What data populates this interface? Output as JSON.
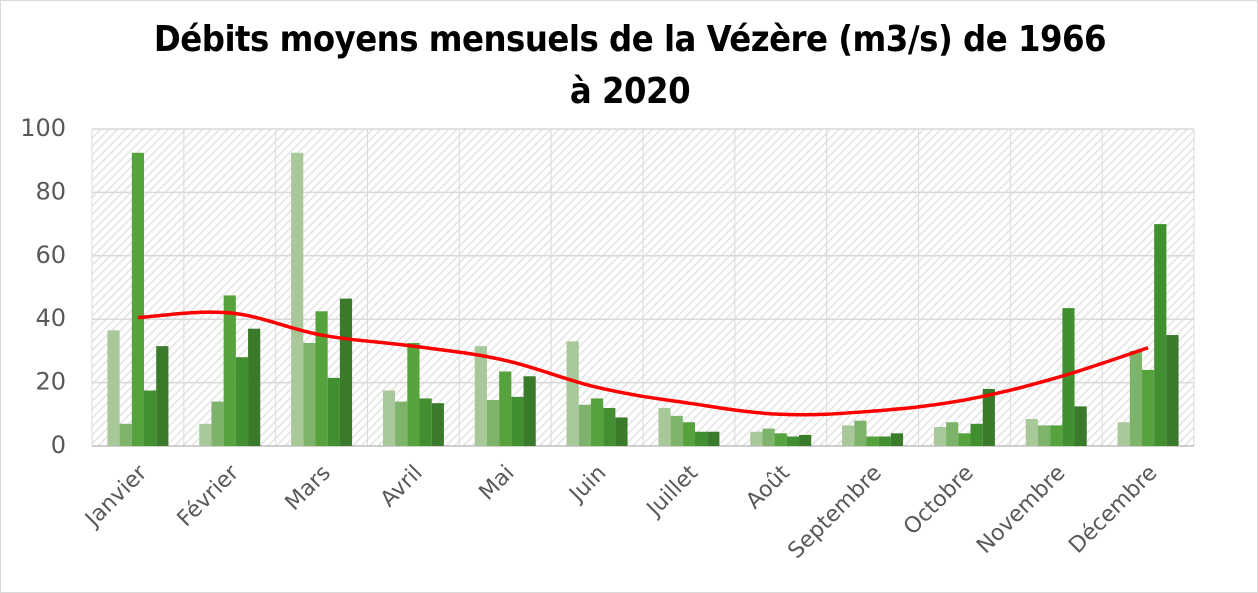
{
  "chart_data": {
    "type": "bar",
    "title": "Débits moyens mensuels de la Vézère (m3/s) de 1966 à 2020",
    "categories": [
      "Janvier",
      "Février",
      "Mars",
      "Avril",
      "Mai",
      "Juin",
      "Juillet",
      "Août",
      "Septembre",
      "Octobre",
      "Novembre",
      "Décembre"
    ],
    "series": [
      {
        "color": "#a8c89a",
        "values": [
          36.5,
          7,
          92.5,
          17.5,
          31.5,
          33,
          12,
          4.5,
          6.5,
          6,
          8.5,
          7.5
        ]
      },
      {
        "color": "#7db36a",
        "values": [
          7,
          14,
          32.5,
          14,
          14.5,
          13,
          9.5,
          5.5,
          8,
          7.5,
          6.5,
          30
        ]
      },
      {
        "color": "#56a33e",
        "values": [
          92.5,
          47.5,
          42.5,
          32.5,
          23.5,
          15,
          7.5,
          4,
          3,
          4,
          6.5,
          24
        ]
      },
      {
        "color": "#418f30",
        "values": [
          17.5,
          28,
          21.5,
          15,
          15.5,
          12,
          4.5,
          3,
          3,
          7,
          43.5,
          70
        ]
      },
      {
        "color": "#3a7a2b",
        "values": [
          31.5,
          37,
          46.5,
          13.5,
          22,
          9,
          4.5,
          3.5,
          4,
          18,
          12.5,
          35
        ]
      },
      {
        "type": "line",
        "color": "#ff0000",
        "values": [
          40.5,
          42,
          35,
          31.5,
          27,
          18.5,
          13.5,
          10,
          11,
          14.5,
          21.5,
          31
        ]
      }
    ],
    "ylim": [
      0,
      100
    ],
    "yticks": [
      0,
      20,
      40,
      60,
      80,
      100
    ],
    "grid": true
  }
}
